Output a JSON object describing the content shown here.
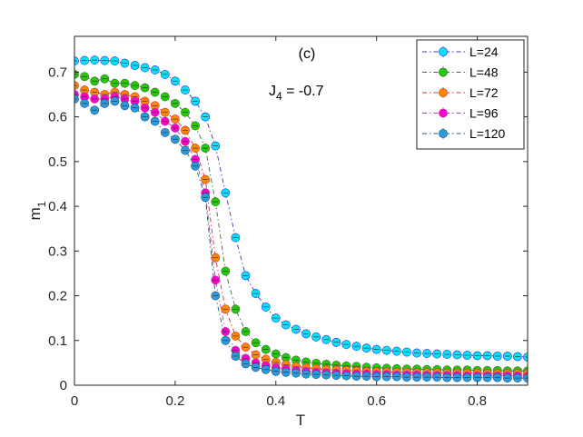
{
  "chart_data": {
    "type": "scatter",
    "title": "",
    "xlabel": "T",
    "ylabel": "m",
    "ylabel_subscript": "1",
    "xlim": [
      0,
      0.9
    ],
    "ylim": [
      0,
      0.78
    ],
    "xticks": [
      0,
      0.2,
      0.4,
      0.6,
      0.8
    ],
    "xtick_labels": [
      "0",
      "0.2",
      "0.4",
      "0.6",
      "0.8"
    ],
    "yticks": [
      0,
      0.1,
      0.2,
      0.3,
      0.4,
      0.5,
      0.6,
      0.7
    ],
    "ytick_labels": [
      "0",
      "0.1",
      "0.2",
      "0.3",
      "0.4",
      "0.5",
      "0.6",
      "0.7"
    ],
    "legend_position": "top-right",
    "annotations": {
      "panel": "(c)",
      "coupling_main": "J",
      "coupling_sub": "4",
      "coupling_value": " = -0.7"
    },
    "series": [
      {
        "name": "L=24",
        "color": "#00e5ff",
        "line_color": "#3333cc",
        "x": [
          0,
          0.02,
          0.04,
          0.06,
          0.08,
          0.1,
          0.12,
          0.14,
          0.16,
          0.18,
          0.2,
          0.22,
          0.24,
          0.26,
          0.28,
          0.3,
          0.32,
          0.34,
          0.36,
          0.38,
          0.4,
          0.42,
          0.44,
          0.46,
          0.48,
          0.5,
          0.52,
          0.54,
          0.56,
          0.58,
          0.6,
          0.62,
          0.64,
          0.66,
          0.68,
          0.7,
          0.72,
          0.74,
          0.76,
          0.78,
          0.8,
          0.82,
          0.84,
          0.86,
          0.88,
          0.9
        ],
        "y": [
          0.725,
          0.726,
          0.727,
          0.726,
          0.725,
          0.72,
          0.715,
          0.71,
          0.705,
          0.695,
          0.68,
          0.66,
          0.635,
          0.6,
          0.535,
          0.43,
          0.33,
          0.245,
          0.205,
          0.175,
          0.15,
          0.135,
          0.125,
          0.115,
          0.108,
          0.102,
          0.096,
          0.091,
          0.087,
          0.083,
          0.08,
          0.078,
          0.076,
          0.074,
          0.072,
          0.071,
          0.07,
          0.069,
          0.068,
          0.067,
          0.066,
          0.066,
          0.065,
          0.065,
          0.064,
          0.063
        ]
      },
      {
        "name": "L=48",
        "color": "#22cc00",
        "line_color": "#446644",
        "x": [
          0,
          0.02,
          0.04,
          0.06,
          0.08,
          0.1,
          0.12,
          0.14,
          0.16,
          0.18,
          0.2,
          0.22,
          0.24,
          0.26,
          0.28,
          0.3,
          0.32,
          0.34,
          0.36,
          0.38,
          0.4,
          0.42,
          0.44,
          0.46,
          0.48,
          0.5,
          0.52,
          0.54,
          0.56,
          0.58,
          0.6,
          0.62,
          0.64,
          0.66,
          0.68,
          0.7,
          0.72,
          0.74,
          0.76,
          0.78,
          0.8,
          0.82,
          0.84,
          0.86,
          0.88,
          0.9
        ],
        "y": [
          0.695,
          0.69,
          0.68,
          0.685,
          0.675,
          0.675,
          0.67,
          0.665,
          0.655,
          0.645,
          0.63,
          0.61,
          0.58,
          0.53,
          0.41,
          0.255,
          0.17,
          0.12,
          0.095,
          0.08,
          0.07,
          0.062,
          0.056,
          0.052,
          0.049,
          0.047,
          0.045,
          0.043,
          0.042,
          0.04,
          0.039,
          0.038,
          0.037,
          0.036,
          0.036,
          0.035,
          0.035,
          0.034,
          0.034,
          0.034,
          0.033,
          0.033,
          0.033,
          0.032,
          0.032,
          0.032
        ]
      },
      {
        "name": "L=72",
        "color": "#ff8800",
        "line_color": "#cc3333",
        "x": [
          0,
          0.02,
          0.04,
          0.06,
          0.08,
          0.1,
          0.12,
          0.14,
          0.16,
          0.18,
          0.2,
          0.22,
          0.24,
          0.26,
          0.28,
          0.3,
          0.32,
          0.34,
          0.36,
          0.38,
          0.4,
          0.42,
          0.44,
          0.46,
          0.48,
          0.5,
          0.52,
          0.54,
          0.56,
          0.58,
          0.6,
          0.62,
          0.64,
          0.66,
          0.68,
          0.7,
          0.72,
          0.74,
          0.76,
          0.78,
          0.8,
          0.82,
          0.84,
          0.86,
          0.88,
          0.9
        ],
        "y": [
          0.67,
          0.66,
          0.655,
          0.65,
          0.655,
          0.65,
          0.645,
          0.635,
          0.625,
          0.61,
          0.595,
          0.57,
          0.53,
          0.46,
          0.285,
          0.17,
          0.11,
          0.085,
          0.068,
          0.058,
          0.051,
          0.046,
          0.042,
          0.039,
          0.037,
          0.035,
          0.034,
          0.033,
          0.032,
          0.031,
          0.03,
          0.03,
          0.029,
          0.029,
          0.028,
          0.028,
          0.028,
          0.027,
          0.027,
          0.027,
          0.027,
          0.026,
          0.026,
          0.026,
          0.026,
          0.026
        ]
      },
      {
        "name": "L=96",
        "color": "#ff00cc",
        "line_color": "#aa44aa",
        "x": [
          0,
          0.02,
          0.04,
          0.06,
          0.08,
          0.1,
          0.12,
          0.14,
          0.16,
          0.18,
          0.2,
          0.22,
          0.24,
          0.26,
          0.28,
          0.3,
          0.32,
          0.34,
          0.36,
          0.38,
          0.4,
          0.42,
          0.44,
          0.46,
          0.48,
          0.5,
          0.52,
          0.54,
          0.56,
          0.58,
          0.6,
          0.62,
          0.64,
          0.66,
          0.68,
          0.7,
          0.72,
          0.74,
          0.76,
          0.78,
          0.8,
          0.82,
          0.84,
          0.86,
          0.88,
          0.9
        ],
        "y": [
          0.65,
          0.645,
          0.64,
          0.64,
          0.645,
          0.64,
          0.635,
          0.62,
          0.61,
          0.59,
          0.575,
          0.545,
          0.505,
          0.43,
          0.235,
          0.12,
          0.078,
          0.06,
          0.05,
          0.044,
          0.039,
          0.036,
          0.033,
          0.031,
          0.029,
          0.028,
          0.027,
          0.026,
          0.025,
          0.025,
          0.024,
          0.024,
          0.023,
          0.023,
          0.023,
          0.022,
          0.022,
          0.022,
          0.022,
          0.021,
          0.021,
          0.021,
          0.021,
          0.021,
          0.021,
          0.02
        ]
      },
      {
        "name": "L=120",
        "color": "#2b9be0",
        "line_color": "#225577",
        "x": [
          0,
          0.02,
          0.04,
          0.06,
          0.08,
          0.1,
          0.12,
          0.14,
          0.16,
          0.18,
          0.2,
          0.22,
          0.24,
          0.26,
          0.28,
          0.3,
          0.32,
          0.34,
          0.36,
          0.38,
          0.4,
          0.42,
          0.44,
          0.46,
          0.48,
          0.5,
          0.52,
          0.54,
          0.56,
          0.58,
          0.6,
          0.62,
          0.64,
          0.66,
          0.68,
          0.7,
          0.72,
          0.74,
          0.76,
          0.78,
          0.8,
          0.82,
          0.84,
          0.86,
          0.88,
          0.9
        ],
        "y": [
          0.64,
          0.63,
          0.615,
          0.63,
          0.635,
          0.625,
          0.62,
          0.6,
          0.59,
          0.565,
          0.55,
          0.525,
          0.49,
          0.42,
          0.2,
          0.1,
          0.065,
          0.048,
          0.04,
          0.035,
          0.031,
          0.029,
          0.027,
          0.025,
          0.024,
          0.023,
          0.022,
          0.021,
          0.02,
          0.02,
          0.019,
          0.019,
          0.019,
          0.018,
          0.018,
          0.018,
          0.018,
          0.017,
          0.017,
          0.017,
          0.017,
          0.017,
          0.017,
          0.016,
          0.016,
          0.016
        ]
      }
    ]
  }
}
